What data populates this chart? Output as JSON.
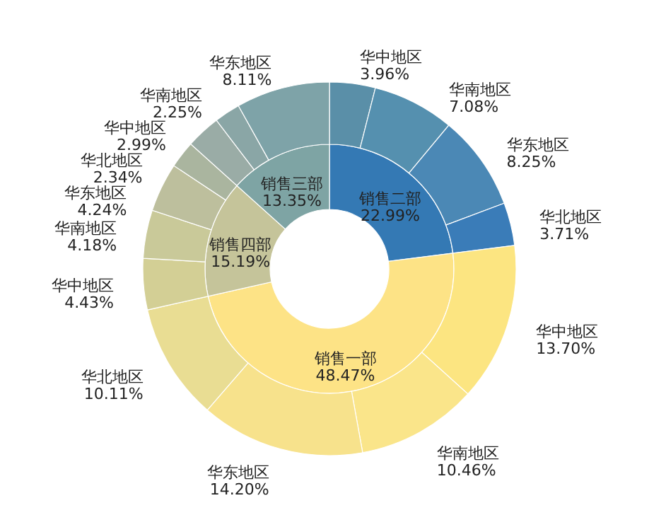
{
  "chart_data": [
    {
      "type": "donut",
      "categories": [
        "销售二部",
        "销售一部",
        "销售四部",
        "销售三部"
      ],
      "values": [
        22.99,
        48.47,
        15.19,
        13.35
      ],
      "value_labels": [
        "22.99%",
        "48.47%",
        "15.19%",
        "13.35%"
      ],
      "colors": [
        "#3479b4",
        "#fde386",
        "#c5c49a",
        "#7ea4a4"
      ]
    },
    {
      "type": "donut",
      "categories": [
        "华中地区",
        "华南地区",
        "华东地区",
        "华北地区",
        "华中地区",
        "华南地区",
        "华东地区",
        "华北地区",
        "华中地区",
        "华南地区",
        "华东地区",
        "华北地区",
        "华中地区",
        "华南地区",
        "华东地区"
      ],
      "values": [
        3.96,
        7.08,
        8.25,
        3.71,
        13.7,
        10.46,
        14.2,
        10.11,
        4.43,
        4.18,
        4.24,
        2.34,
        2.99,
        2.25,
        8.11
      ],
      "value_labels": [
        "3.96%",
        "7.08%",
        "8.25%",
        "3.71%",
        "13.70%",
        "10.46%",
        "14.20%",
        "10.11%",
        "4.43%",
        "4.18%",
        "4.24%",
        "2.34%",
        "2.99%",
        "2.25%",
        "8.11%"
      ],
      "colors": [
        "#5a8fa8",
        "#5590af",
        "#4b88b5",
        "#3a7cb8",
        "#fce581",
        "#fae58a",
        "#f7e28c",
        "#e9dd93",
        "#d3cf95",
        "#c9c999",
        "#bdbf9d",
        "#aab59f",
        "#9aaca6",
        "#8aa6a6",
        "#7ea3a8"
      ]
    }
  ]
}
